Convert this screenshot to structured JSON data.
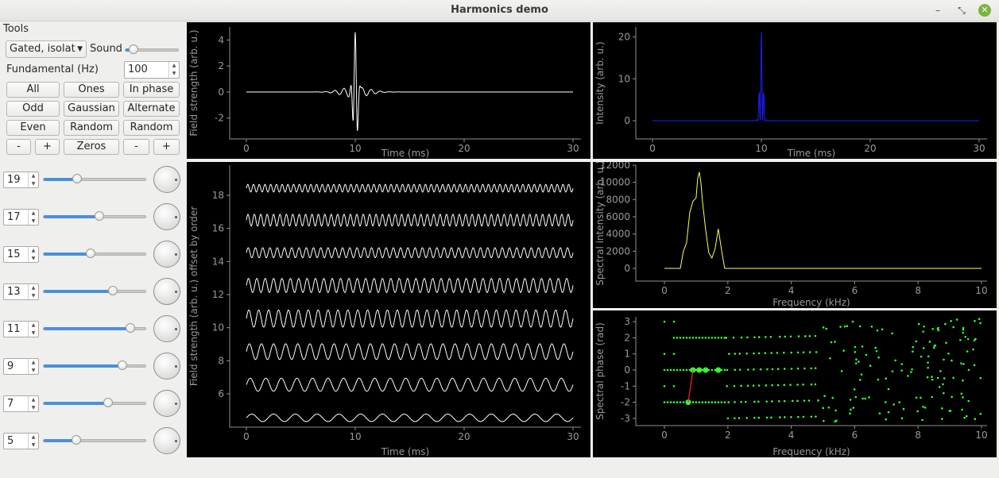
{
  "window": {
    "title": "Harmonics demo",
    "minimize": "–",
    "restore": "⤡",
    "close": "✕"
  },
  "tools": {
    "label": "Tools",
    "mode_select": "Gated, isolat",
    "sound_label": "Sound",
    "sound_level": 0.15,
    "fundamental_label": "Fundamental (Hz)",
    "fundamental_value": "100",
    "buttons": {
      "all": "All",
      "ones": "Ones",
      "in_phase": "In phase",
      "odd": "Odd",
      "gaussian": "Gaussian",
      "alternate": "Alternate",
      "even": "Even",
      "random_amp": "Random",
      "random_phase": "Random",
      "amp_minus": "-",
      "amp_plus": "+",
      "zeros": "Zeros",
      "phase_minus": "-",
      "phase_plus": "+"
    }
  },
  "harmonics": [
    {
      "order": "19",
      "amplitude": 0.33
    },
    {
      "order": "17",
      "amplitude": 0.55
    },
    {
      "order": "15",
      "amplitude": 0.46
    },
    {
      "order": "13",
      "amplitude": 0.68
    },
    {
      "order": "11",
      "amplitude": 0.85
    },
    {
      "order": "9",
      "amplitude": 0.77
    },
    {
      "order": "7",
      "amplitude": 0.63
    },
    {
      "order": "5",
      "amplitude": 0.32
    }
  ],
  "plots": {
    "field": {
      "ylabel": "Field strength (arb. u.)",
      "xlabel": "Time (ms)",
      "xticks": [
        "0",
        "10",
        "20",
        "30"
      ],
      "yticks": [
        "4",
        "2",
        "0",
        "-2"
      ],
      "color": "#ffffff"
    },
    "intensity": {
      "ylabel": "Intensity (arb. u.)",
      "xlabel": "Time (ms)",
      "xticks": [
        "0",
        "10",
        "20",
        "30"
      ],
      "yticks": [
        "20",
        "10",
        "0"
      ],
      "color": "#1f1fff"
    },
    "offset": {
      "ylabel": "Field strength (arb. u.) offset by order",
      "xlabel": "Time (ms)",
      "xticks": [
        "0",
        "10",
        "20",
        "30"
      ],
      "yticks": [
        "18",
        "16",
        "14",
        "12",
        "10",
        "8",
        "6"
      ],
      "color": "#ffffff"
    },
    "spectrum": {
      "ylabel": "Spectral intensity (arb. u.)",
      "xlabel": "Frequency (kHz)",
      "xticks": [
        "0",
        "2",
        "4",
        "6",
        "8",
        "10"
      ],
      "yticks": [
        "12000",
        "10000",
        "8000",
        "6000",
        "4000",
        "2000",
        "0"
      ],
      "color": "#ffff55"
    },
    "phase": {
      "ylabel": "Spectral phase (rad)",
      "xlabel": "Frequency (kHz)",
      "xticks": [
        "0",
        "2",
        "4",
        "6",
        "8",
        "10"
      ],
      "yticks": [
        "3",
        "2",
        "1",
        "0",
        "-1",
        "-2",
        "-3"
      ],
      "color": "#33ff33"
    }
  }
}
